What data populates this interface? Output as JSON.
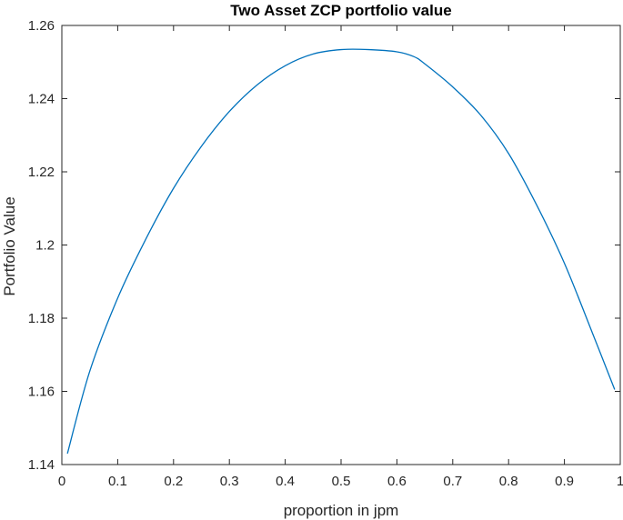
{
  "chart_data": {
    "type": "line",
    "title": "Two Asset ZCP portfolio value",
    "xlabel": "proportion in jpm",
    "ylabel": "Portfolio Value",
    "xlim": [
      0,
      1
    ],
    "ylim": [
      1.14,
      1.26
    ],
    "xticks": [
      0,
      0.1,
      0.2,
      0.3,
      0.4,
      0.5,
      0.6,
      0.7,
      0.8,
      0.9,
      1
    ],
    "xtick_labels": [
      "0",
      "0.1",
      "0.2",
      "0.3",
      "0.4",
      "0.5",
      "0.6",
      "0.7",
      "0.8",
      "0.9",
      "1"
    ],
    "yticks": [
      1.14,
      1.16,
      1.18,
      1.2,
      1.22,
      1.24,
      1.26
    ],
    "ytick_labels": [
      "1.14",
      "1.16",
      "1.18",
      "1.2",
      "1.22",
      "1.24",
      "1.26"
    ],
    "grid": false,
    "box": true,
    "series": [
      {
        "color": "#0072BD",
        "x": [
          0.01,
          0.05,
          0.1,
          0.15,
          0.2,
          0.25,
          0.3,
          0.35,
          0.4,
          0.45,
          0.5,
          0.55,
          0.6,
          0.63,
          0.65,
          0.7,
          0.75,
          0.8,
          0.85,
          0.9,
          0.95,
          0.99
        ],
        "y": [
          1.143,
          1.1655,
          1.1855,
          1.2015,
          1.2155,
          1.227,
          1.2365,
          1.2438,
          1.249,
          1.2522,
          1.2534,
          1.2534,
          1.2528,
          1.2515,
          1.2495,
          1.2432,
          1.2355,
          1.225,
          1.211,
          1.195,
          1.176,
          1.1605
        ]
      }
    ]
  }
}
